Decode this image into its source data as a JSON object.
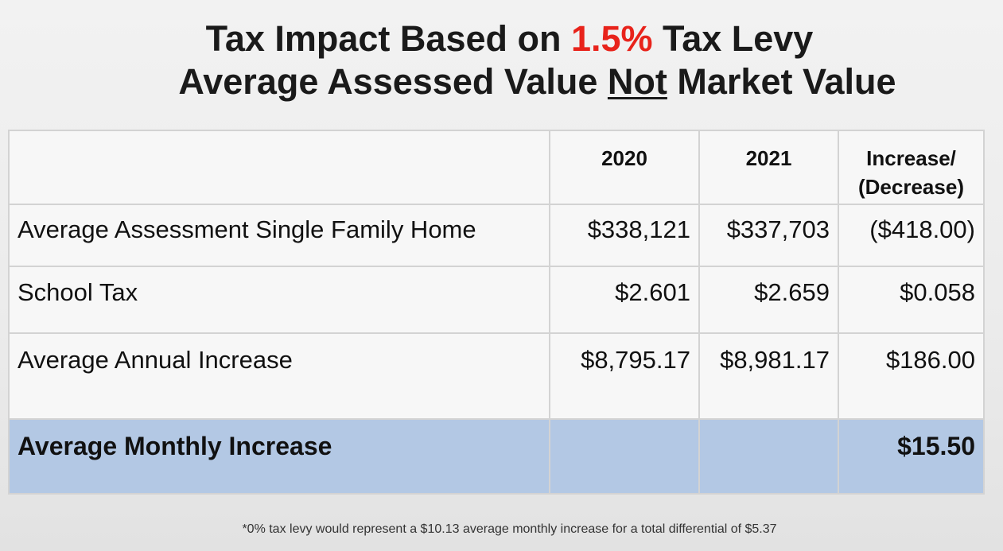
{
  "title": {
    "line1_before": "Tax Impact Based on ",
    "line1_accent": "1.5%",
    "line1_after": " Tax Levy",
    "line2_before": "Average Assessed Value ",
    "line2_underline": "Not",
    "line2_after": " Market Value"
  },
  "colors": {
    "accent": "#e8231b",
    "highlight_row": "#b3c8e4",
    "grid": "#d3d3d3"
  },
  "table": {
    "headers": [
      "",
      "2020",
      "2021",
      "Increase/\n(Decrease)"
    ],
    "header_increase_line1": "Increase/",
    "header_increase_line2": "(Decrease)",
    "rows": [
      {
        "label": "Average Assessment Single Family Home",
        "y2020": "$338,121",
        "y2021": "$337,703",
        "change": "($418.00)"
      },
      {
        "label": "School Tax",
        "y2020": "$2.601",
        "y2021": "$2.659",
        "change": "$0.058"
      },
      {
        "label": "Average Annual Increase",
        "y2020": "$8,795.17",
        "y2021": "$8,981.17",
        "change": "$186.00"
      }
    ],
    "total": {
      "label": "Average Monthly Increase",
      "y2020": "",
      "y2021": "",
      "change": "$15.50"
    }
  },
  "footnote": "*0% tax levy would represent a $10.13 average monthly  increase for a total differential of $5.37"
}
